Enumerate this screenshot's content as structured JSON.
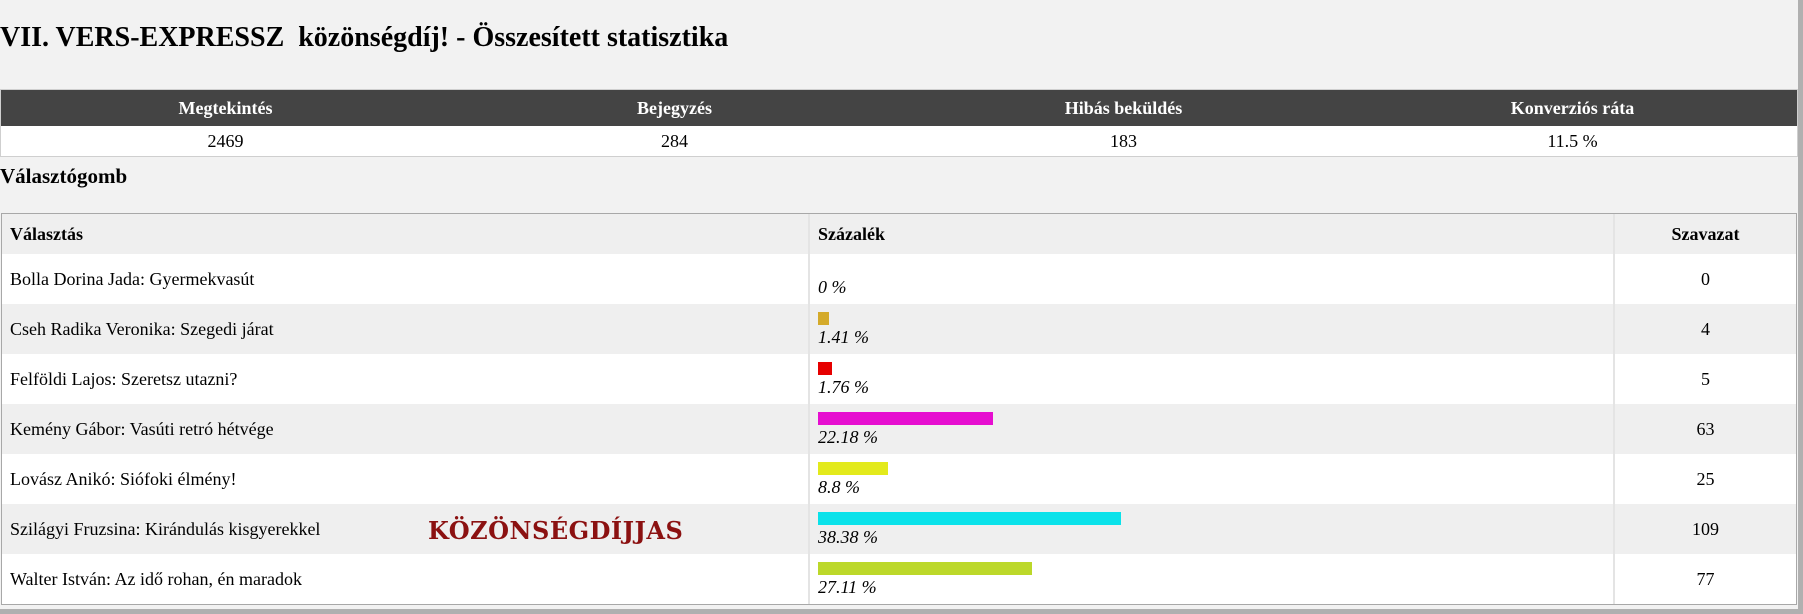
{
  "page": {
    "title": "VII. VERS-EXPRESSZ  közönségdíj! - Összesített statisztika"
  },
  "stats": {
    "headers": [
      "Megtekintés",
      "Bejegyzés",
      "Hibás beküldés",
      "Konverziós ráta"
    ],
    "values": [
      "2469",
      "284",
      "183",
      "11.5 %"
    ]
  },
  "section": {
    "title": "Választógomb"
  },
  "results": {
    "headers": [
      "Választás",
      "Százalék",
      "Szavazat"
    ],
    "rows": [
      {
        "choice": "Bolla Dorina Jada: Gyermekvasút",
        "percent_label": "0 %",
        "percent": 0,
        "votes": "0",
        "bar_color": "#ffffff"
      },
      {
        "choice": "Cseh Radika Veronika: Szegedi járat",
        "percent_label": "1.41 %",
        "percent": 1.41,
        "votes": "4",
        "bar_color": "#d4aa2a"
      },
      {
        "choice": "Felföldi Lajos: Szeretsz utazni?",
        "percent_label": "1.76 %",
        "percent": 1.76,
        "votes": "5",
        "bar_color": "#e60000"
      },
      {
        "choice": "Kemény Gábor: Vasúti retró hétvége",
        "percent_label": "22.18 %",
        "percent": 22.18,
        "votes": "63",
        "bar_color": "#e60ed0"
      },
      {
        "choice": "Lovász Anikó: Siófoki élmény!",
        "percent_label": "8.8 %",
        "percent": 8.8,
        "votes": "25",
        "bar_color": "#e3ea1c"
      },
      {
        "choice": "Szilágyi Fruzsina: Kirándulás kisgyerekkel",
        "percent_label": "38.38 %",
        "percent": 38.38,
        "votes": "109",
        "bar_color": "#0ae2ea",
        "award": "KÖZÖNSÉGDÍJJAS"
      },
      {
        "choice": "Walter István: Az idő rohan, én maradok",
        "percent_label": "27.11 %",
        "percent": 27.11,
        "votes": "77",
        "bar_color": "#bcd82a"
      }
    ]
  }
}
